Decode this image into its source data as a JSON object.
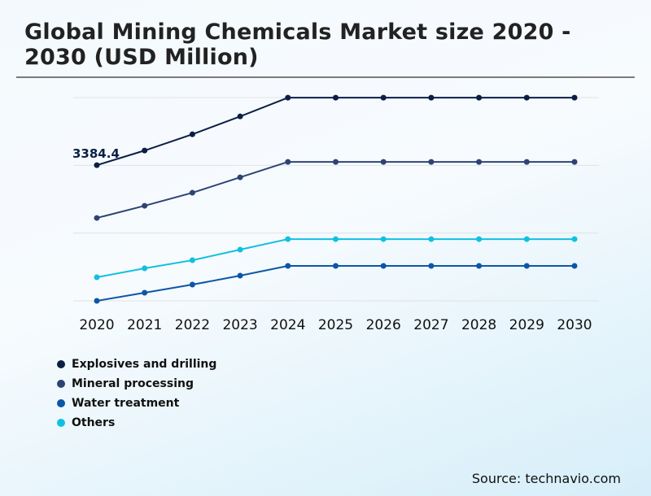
{
  "title": "Global Mining Chemicals Market size 2020 - 2030 (USD Million)",
  "source": "Source: technavio.com",
  "chart_data": {
    "type": "line",
    "title": "Global Mining Chemicals Market size 2020 - 2030 (USD Million)",
    "x": [
      "2020",
      "2021",
      "2022",
      "2023",
      "2024",
      "2025",
      "2026",
      "2027",
      "2028",
      "2029",
      "2030"
    ],
    "ylim": [
      0,
      5070
    ],
    "grid": true,
    "legend_placement": "bottom-left",
    "annotation": "3384.4",
    "series": [
      {
        "name": "Explosives and drilling",
        "color": "#0b1f45",
        "values": [
          3384.4,
          3749,
          4154,
          4600,
          5067,
          5067,
          5067,
          5067,
          5067,
          5067,
          5067
        ]
      },
      {
        "name": "Mineral processing",
        "color": "#2d4373",
        "values": [
          2067,
          2371,
          2696,
          3081,
          3466,
          3466,
          3466,
          3466,
          3466,
          3466,
          3466
        ]
      },
      {
        "name": "Water treatment",
        "color": "#0d56a6",
        "values": [
          0,
          203,
          405,
          628,
          872,
          872,
          872,
          872,
          872,
          872,
          872
        ]
      },
      {
        "name": "Others",
        "color": "#10c0e0",
        "values": [
          588,
          811,
          1013,
          1277,
          1540,
          1540,
          1540,
          1540,
          1540,
          1540,
          1540
        ]
      }
    ]
  }
}
